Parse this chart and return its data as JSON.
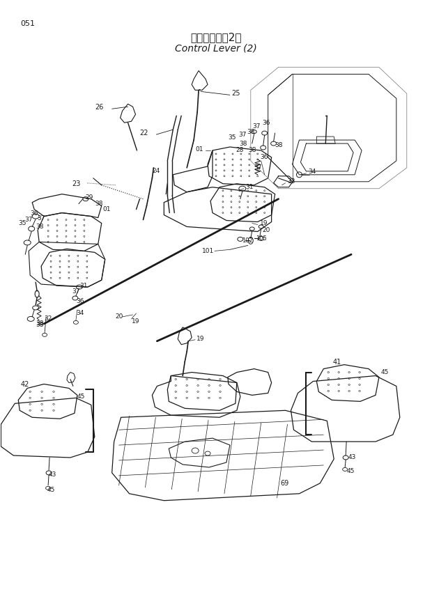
{
  "title_japanese": "操作レバー（2）",
  "title_english": "Control Lever (2)",
  "page_number": "051",
  "bg_color": "#ffffff",
  "line_color": "#1a1a1a",
  "text_color": "#1a1a1a",
  "fig_width": 6.2,
  "fig_height": 8.73,
  "dpi": 100
}
